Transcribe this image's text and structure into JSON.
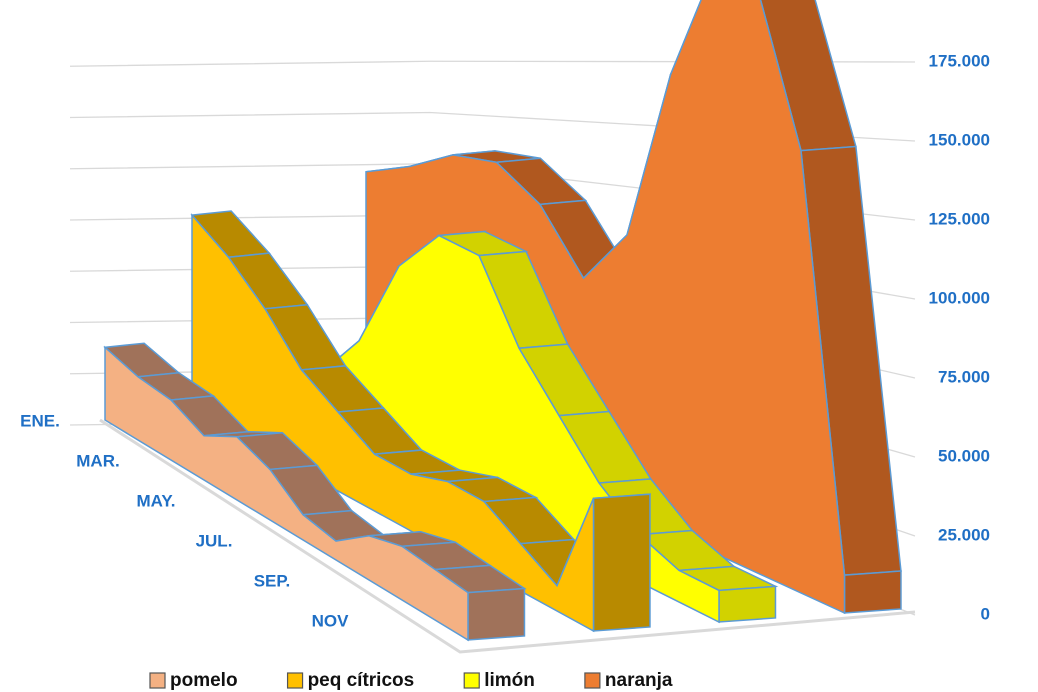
{
  "chart_data": {
    "type": "area3d",
    "categories": [
      "ENE.",
      null,
      "MAR.",
      null,
      "MAY.",
      null,
      "JUL.",
      null,
      "SEP.",
      null,
      "NOV",
      null
    ],
    "series": [
      {
        "name": "pomelo",
        "color": "#f4b183",
        "top_color": "#a0725a",
        "values": [
          23000,
          20000,
          19000,
          14000,
          20000,
          16000,
          8000,
          6000,
          14000,
          17000,
          16000,
          15000
        ]
      },
      {
        "name": "peq cítricos",
        "color": "#ffc000",
        "top_color": "#b88a00",
        "values": [
          62000,
          55000,
          45000,
          32000,
          25000,
          18000,
          18000,
          22000,
          22000,
          15000,
          8000,
          42000
        ]
      },
      {
        "name": "limón",
        "color": "#ffff00",
        "top_color": "#d2d200",
        "values": [
          8000,
          15000,
          32000,
          62000,
          78000,
          78000,
          55000,
          40000,
          25000,
          15000,
          10000,
          10000
        ]
      },
      {
        "name": "naranja",
        "color": "#ed7d31",
        "top_color": "#b0581f",
        "values": [
          70000,
          78000,
          88000,
          92000,
          85000,
          68000,
          88000,
          145000,
          185000,
          185000,
          140000,
          12000
        ]
      }
    ],
    "ylim": [
      0,
      200000
    ],
    "yticks": [
      0,
      {
        "value": 25000,
        "label": "25.000"
      },
      {
        "value": 50000,
        "label": "50.000"
      },
      {
        "value": 75000,
        "label": "75.000"
      },
      {
        "value": 100000,
        "label": "100.000"
      },
      {
        "value": 125000,
        "label": "125.000"
      },
      {
        "value": 150000,
        "label": "150.000"
      },
      {
        "value": 175000,
        "label": "175.000"
      }
    ],
    "grid": true
  }
}
